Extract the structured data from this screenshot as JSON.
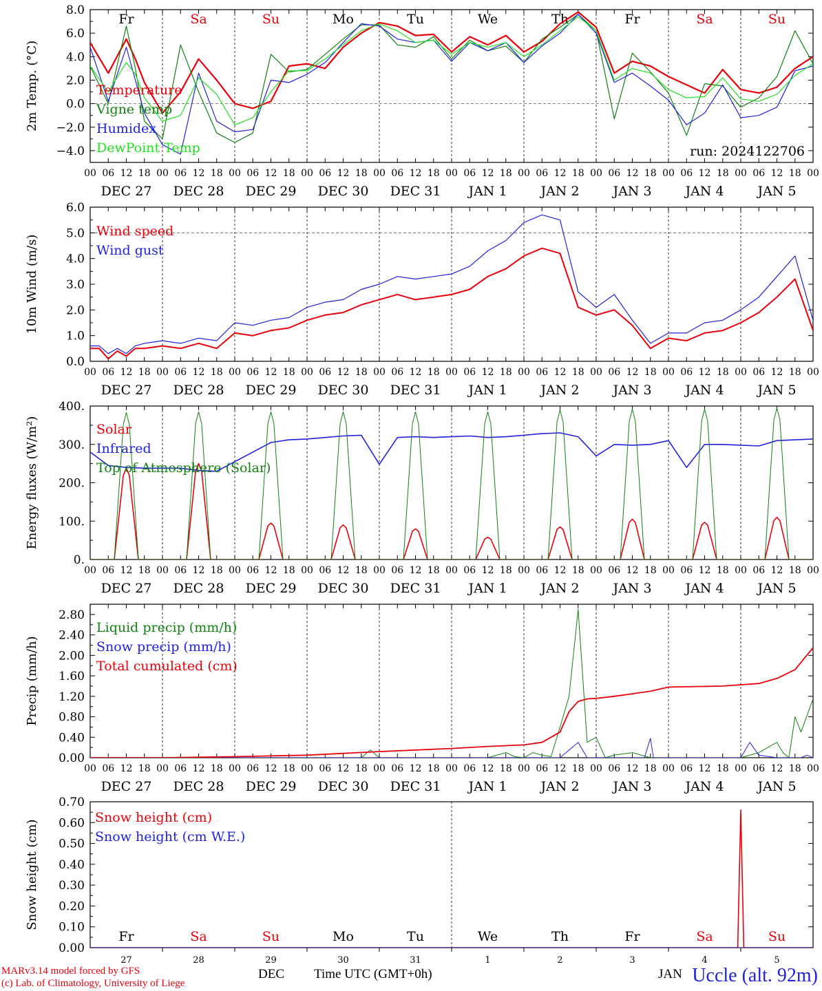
{
  "footer": {
    "credit_line1": "MARv3.14 model forced by GFS",
    "credit_line2": "(c) Lab. of Climatology, University of Liege",
    "x_caption": "Time UTC (GMT+0h)",
    "dec_word": "DEC",
    "jan_word": "JAN",
    "station": "Uccle (alt. 92m)"
  },
  "time_axis": {
    "hour_ticks": [
      "00",
      "06",
      "12",
      "18"
    ],
    "final_tick": "00",
    "dates": [
      "DEC 27",
      "DEC 28",
      "DEC 29",
      "DEC 30",
      "DEC 31",
      "JAN  1",
      "JAN  2",
      "JAN  3",
      "JAN  4",
      "JAN  5"
    ],
    "weekdays": [
      "Fr",
      "Sa",
      "Su",
      "Mo",
      "Tu",
      "We",
      "Th",
      "Fr",
      "Sa",
      "Su"
    ],
    "weekday_colors": [
      "#000000",
      "#e8000b",
      "#e8000b",
      "#000000",
      "#000000",
      "#000000",
      "#000000",
      "#000000",
      "#e8000b",
      "#e8000b"
    ],
    "day_numbers": [
      "27",
      "28",
      "29",
      "30",
      "31",
      "1",
      "2",
      "3",
      "4",
      "5"
    ]
  },
  "colors": {
    "red": "#e8000b",
    "green": "#108010",
    "blue": "#2020e0",
    "lightgreen": "#20e020"
  },
  "chart_data": [
    {
      "type": "line",
      "ylabel": "2m Temp. (°C)",
      "ylim": [
        -5.0,
        8.0
      ],
      "yticks": [
        "−4.0",
        "−2.0",
        "0.0",
        "2.0",
        "4.0",
        "6.0",
        "8.0"
      ],
      "ytick_values": [
        -4,
        -2,
        0,
        2,
        4,
        6,
        8
      ],
      "zero_line": 0,
      "annotation": "run: 2024122706",
      "weekday_labels": true,
      "series": [
        {
          "name": "Temperature",
          "color": "#e8000b",
          "width": 2.2,
          "x": [
            0,
            6,
            12,
            15,
            18,
            24,
            30,
            36,
            42,
            48,
            54,
            60,
            66,
            72,
            78,
            84,
            90,
            96,
            102,
            108,
            114,
            120,
            126,
            132,
            138,
            144,
            150,
            156,
            162,
            168,
            174,
            180,
            186,
            192,
            198,
            204,
            210,
            216,
            222,
            228,
            234,
            240
          ],
          "values": [
            5.2,
            2.6,
            5.5,
            3.8,
            1.8,
            -0.8,
            1.0,
            3.8,
            2.0,
            0.0,
            -0.4,
            0.2,
            3.2,
            3.4,
            3.0,
            4.8,
            6.0,
            6.9,
            6.6,
            5.8,
            5.9,
            4.4,
            5.7,
            5.0,
            5.8,
            4.4,
            5.3,
            6.8,
            7.8,
            6.5,
            2.6,
            3.6,
            3.2,
            2.3,
            1.6,
            0.9,
            2.9,
            1.2,
            0.9,
            1.4,
            3.0,
            4.0
          ]
        },
        {
          "name": "Vigne temp",
          "color": "#108010",
          "width": 1.2,
          "x": [
            0,
            6,
            12,
            15,
            18,
            24,
            30,
            36,
            42,
            48,
            54,
            60,
            66,
            72,
            78,
            84,
            90,
            96,
            102,
            108,
            114,
            120,
            126,
            132,
            138,
            144,
            150,
            156,
            162,
            168,
            174,
            180,
            186,
            192,
            198,
            204,
            210,
            216,
            222,
            228,
            234,
            240
          ],
          "values": [
            3.2,
            0.0,
            6.6,
            3.0,
            -1.5,
            -3.0,
            5.0,
            1.0,
            -2.5,
            -3.3,
            -2.5,
            4.2,
            2.7,
            2.9,
            4.2,
            5.5,
            6.7,
            6.7,
            5.0,
            4.8,
            5.7,
            3.8,
            5.4,
            4.5,
            4.9,
            3.5,
            5.5,
            6.5,
            7.6,
            6.2,
            -1.3,
            4.3,
            2.7,
            0.9,
            -2.7,
            1.7,
            1.5,
            -0.3,
            0.5,
            2.3,
            6.2,
            3.4
          ]
        },
        {
          "name": "Humidex",
          "color": "#2020e0",
          "width": 1.2,
          "x": [
            0,
            6,
            12,
            15,
            18,
            24,
            30,
            36,
            42,
            48,
            54,
            60,
            66,
            72,
            78,
            84,
            90,
            96,
            102,
            108,
            114,
            120,
            126,
            132,
            138,
            144,
            150,
            156,
            162,
            168,
            174,
            180,
            186,
            192,
            198,
            204,
            210,
            216,
            222,
            228,
            234,
            240
          ],
          "values": [
            4.8,
            0.2,
            4.8,
            2.0,
            -0.8,
            -3.5,
            -4.3,
            2.6,
            -1.5,
            -2.4,
            -2.2,
            2.0,
            1.8,
            2.5,
            3.5,
            5.2,
            6.8,
            6.6,
            5.5,
            5.2,
            5.4,
            3.6,
            5.2,
            4.5,
            5.2,
            3.5,
            4.9,
            6.0,
            7.6,
            6.0,
            1.8,
            2.6,
            1.5,
            0.3,
            -1.8,
            -0.8,
            1.6,
            -1.2,
            -1.0,
            -0.3,
            2.8,
            3.2
          ]
        },
        {
          "name": "DewPoint Temp",
          "color": "#20e020",
          "width": 1.2,
          "x": [
            0,
            6,
            12,
            15,
            18,
            24,
            30,
            36,
            42,
            48,
            54,
            60,
            66,
            72,
            78,
            84,
            90,
            96,
            102,
            108,
            114,
            120,
            126,
            132,
            138,
            144,
            150,
            156,
            162,
            168,
            174,
            180,
            186,
            192,
            198,
            204,
            210,
            216,
            222,
            228,
            234,
            240
          ],
          "values": [
            3.2,
            1.0,
            3.5,
            2.5,
            0.5,
            -1.5,
            -1.0,
            2.2,
            0.8,
            -1.8,
            -1.2,
            1.0,
            2.8,
            2.8,
            3.8,
            5.0,
            6.2,
            6.8,
            6.2,
            5.2,
            5.4,
            4.2,
            5.2,
            4.8,
            5.2,
            4.0,
            5.0,
            6.2,
            7.4,
            6.2,
            2.0,
            3.0,
            2.6,
            1.2,
            0.5,
            0.6,
            2.2,
            0.4,
            0.2,
            0.8,
            2.4,
            3.4
          ]
        }
      ]
    },
    {
      "type": "line",
      "ylabel": "10m Wind (m/s)",
      "ylim": [
        0.0,
        6.0
      ],
      "yticks": [
        "0.0",
        "1.0",
        "2.0",
        "3.0",
        "4.0",
        "5.0",
        "6.0"
      ],
      "ytick_values": [
        0,
        1,
        2,
        3,
        4,
        5,
        6
      ],
      "zero_line": 5,
      "series": [
        {
          "name": "Wind speed",
          "color": "#e8000b",
          "width": 2.0,
          "x": [
            0,
            3,
            6,
            9,
            12,
            15,
            18,
            24,
            30,
            36,
            42,
            48,
            54,
            60,
            66,
            72,
            78,
            84,
            90,
            96,
            102,
            108,
            114,
            120,
            126,
            132,
            138,
            144,
            150,
            156,
            162,
            168,
            174,
            180,
            186,
            192,
            198,
            204,
            210,
            216,
            222,
            228,
            234,
            240
          ],
          "values": [
            0.5,
            0.5,
            0.1,
            0.4,
            0.2,
            0.5,
            0.5,
            0.6,
            0.5,
            0.7,
            0.5,
            1.1,
            1.0,
            1.2,
            1.3,
            1.6,
            1.8,
            1.9,
            2.2,
            2.4,
            2.6,
            2.4,
            2.5,
            2.6,
            2.8,
            3.3,
            3.6,
            4.1,
            4.4,
            4.2,
            2.1,
            1.8,
            2.0,
            1.4,
            0.5,
            0.9,
            0.8,
            1.1,
            1.2,
            1.5,
            1.9,
            2.5,
            3.2,
            1.2
          ]
        },
        {
          "name": "Wind gust",
          "color": "#2020e0",
          "width": 1.2,
          "x": [
            0,
            3,
            6,
            9,
            12,
            15,
            18,
            24,
            30,
            36,
            42,
            48,
            54,
            60,
            66,
            72,
            78,
            84,
            90,
            96,
            102,
            108,
            114,
            120,
            126,
            132,
            138,
            144,
            150,
            156,
            162,
            168,
            174,
            180,
            186,
            192,
            198,
            204,
            210,
            216,
            222,
            228,
            234,
            240
          ],
          "values": [
            0.6,
            0.6,
            0.3,
            0.5,
            0.3,
            0.6,
            0.7,
            0.8,
            0.7,
            0.9,
            0.8,
            1.5,
            1.4,
            1.6,
            1.7,
            2.1,
            2.3,
            2.4,
            2.8,
            3.0,
            3.3,
            3.2,
            3.3,
            3.4,
            3.7,
            4.3,
            4.7,
            5.4,
            5.7,
            5.5,
            2.7,
            2.1,
            2.6,
            1.6,
            0.7,
            1.1,
            1.1,
            1.5,
            1.6,
            2.0,
            2.5,
            3.3,
            4.1,
            1.6
          ]
        }
      ]
    },
    {
      "type": "line",
      "ylabel": "Energy fluxes (W/m²)",
      "ylim": [
        0,
        400
      ],
      "yticks": [
        "0.",
        "100.",
        "200.",
        "300.",
        "400."
      ],
      "ytick_values": [
        0,
        100,
        200,
        300,
        400
      ],
      "series": [
        {
          "name": "Solar",
          "color": "#e8000b",
          "width": 1.6,
          "day_peaks": [
            238,
            250,
            95,
            90,
            80,
            58,
            85,
            105,
            97,
            110
          ],
          "sunrise": 8,
          "sunset": 16
        },
        {
          "name": "Infrared",
          "color": "#2020e0",
          "width": 1.6,
          "x": [
            0,
            6,
            12,
            18,
            24,
            30,
            36,
            42,
            48,
            54,
            60,
            66,
            72,
            78,
            84,
            90,
            96,
            102,
            108,
            114,
            120,
            126,
            132,
            138,
            144,
            150,
            156,
            162,
            168,
            174,
            180,
            186,
            192,
            198,
            204,
            210,
            216,
            222,
            228,
            234,
            240
          ],
          "values": [
            280,
            245,
            240,
            238,
            238,
            238,
            232,
            230,
            255,
            280,
            305,
            312,
            314,
            318,
            322,
            324,
            248,
            318,
            320,
            318,
            320,
            322,
            318,
            320,
            324,
            328,
            330,
            320,
            270,
            300,
            298,
            300,
            310,
            240,
            300,
            300,
            298,
            296,
            310,
            312,
            314
          ]
        },
        {
          "name": "Top of Atmosphere (Solar)",
          "color": "#108010",
          "width": 1.0,
          "day_peaks": [
            383,
            385,
            385,
            385,
            385,
            385,
            390,
            392,
            392,
            395
          ],
          "sunrise": 8,
          "sunset": 16
        }
      ]
    },
    {
      "type": "line",
      "ylabel": "Precip (mm/h)",
      "ylim": [
        0.0,
        3.0
      ],
      "yticks": [
        "0.00",
        "0.40",
        "0.80",
        "1.20",
        "1.60",
        "2.00",
        "2.40",
        "2.80"
      ],
      "ytick_values": [
        0,
        0.4,
        0.8,
        1.2,
        1.6,
        2.0,
        2.4,
        2.8
      ],
      "series": [
        {
          "name": "Liquid precip (mm/h)",
          "color": "#108010",
          "width": 1.0,
          "x": [
            0,
            90,
            93,
            96,
            120,
            132,
            138,
            141,
            144,
            147,
            150,
            153,
            156,
            159,
            162,
            165,
            168,
            171,
            174,
            180,
            186,
            190,
            192,
            198,
            204,
            210,
            216,
            222,
            228,
            230,
            232,
            234,
            236,
            240
          ],
          "values": [
            0,
            0,
            0.15,
            0,
            0,
            0,
            0.1,
            0.02,
            0,
            0.1,
            0.05,
            0.02,
            0.6,
            1.2,
            2.9,
            0.3,
            0.4,
            0,
            0.05,
            0.1,
            0,
            0,
            0,
            0,
            0,
            0,
            0,
            0.1,
            0.3,
            0.1,
            0,
            0.8,
            0.5,
            1.15
          ]
        },
        {
          "name": "Snow precip (mm/h)",
          "color": "#2020e0",
          "width": 1.0,
          "x": [
            0,
            132,
            156,
            162,
            165,
            180,
            184,
            186,
            187,
            190,
            210,
            216,
            219,
            222,
            228,
            236,
            238,
            240
          ],
          "values": [
            0,
            0,
            0,
            0.3,
            0,
            0,
            0,
            0.38,
            0,
            0,
            0,
            0,
            0.3,
            0.05,
            0,
            0,
            0.05,
            0
          ]
        },
        {
          "name": "Total cumulated (cm)",
          "color": "#e8000b",
          "width": 1.8,
          "x": [
            0,
            24,
            48,
            72,
            96,
            120,
            132,
            144,
            150,
            156,
            159,
            162,
            165,
            168,
            174,
            180,
            186,
            192,
            210,
            222,
            228,
            234,
            240
          ],
          "values": [
            0,
            0,
            0.02,
            0.05,
            0.12,
            0.18,
            0.22,
            0.25,
            0.3,
            0.5,
            0.9,
            1.1,
            1.15,
            1.16,
            1.2,
            1.25,
            1.3,
            1.38,
            1.4,
            1.45,
            1.55,
            1.72,
            2.15
          ]
        }
      ]
    },
    {
      "type": "line",
      "ylabel": "Snow height (cm)",
      "ylim": [
        0.0,
        0.7
      ],
      "yticks": [
        "0.00",
        "0.10",
        "0.20",
        "0.30",
        "0.40",
        "0.50",
        "0.60",
        "0.70"
      ],
      "ytick_values": [
        0,
        0.1,
        0.2,
        0.3,
        0.4,
        0.5,
        0.6,
        0.7
      ],
      "bottom_weekdays": true,
      "series": [
        {
          "name": "Snow height (cm)",
          "color": "#e8000b",
          "width": 1.6,
          "x": [
            0,
            215,
            216,
            217,
            240
          ],
          "values": [
            0,
            0,
            0.66,
            0,
            0
          ]
        },
        {
          "name": "Snow height (cm W.E.)",
          "color": "#2020e0",
          "width": 1.0,
          "x": [
            0,
            240
          ],
          "values": [
            0,
            0
          ]
        }
      ]
    }
  ]
}
